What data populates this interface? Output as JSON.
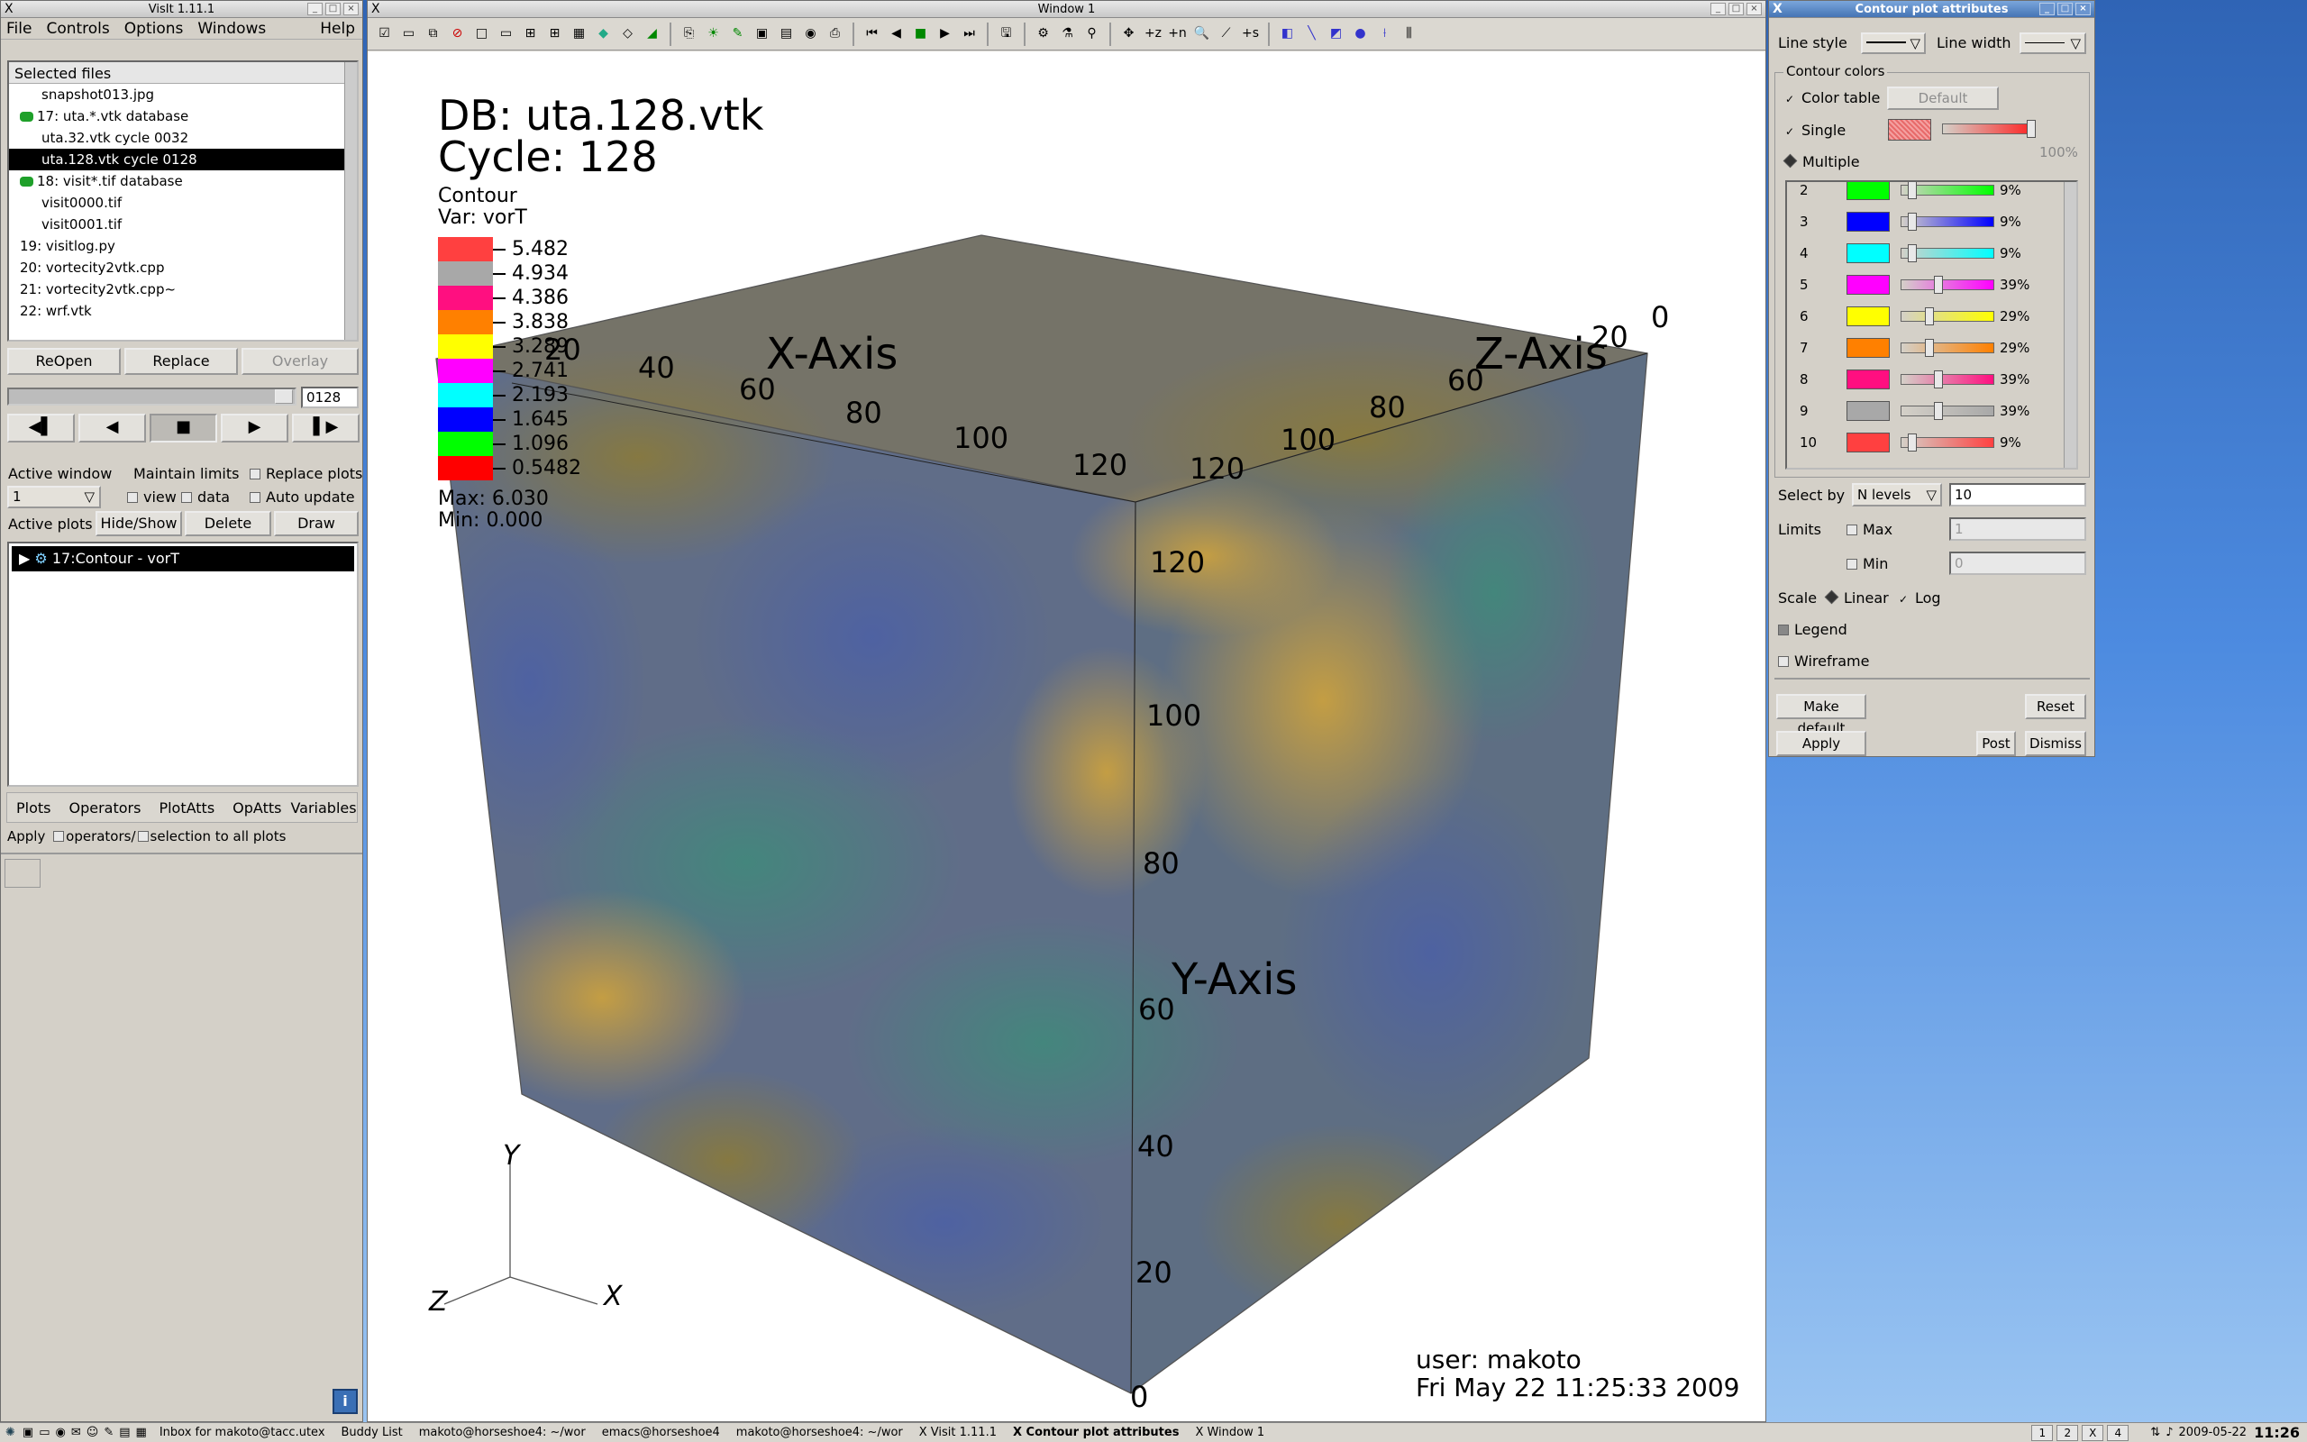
{
  "visit_main": {
    "title": "VisIt 1.11.1",
    "menu": [
      "File",
      "Controls",
      "Options",
      "Windows",
      "Help"
    ],
    "files_header": "Selected files",
    "files": [
      {
        "label": "snapshot013.jpg",
        "indent": 2,
        "icon": "none",
        "selected": false
      },
      {
        "label": "17: uta.*.vtk database",
        "indent": 1,
        "icon": "database-icon",
        "selected": false
      },
      {
        "label": "uta.32.vtk cycle 0032",
        "indent": 2,
        "icon": "none",
        "selected": false
      },
      {
        "label": "uta.128.vtk cycle 0128",
        "indent": 2,
        "icon": "none",
        "selected": true
      },
      {
        "label": "18: visit*.tif database",
        "indent": 1,
        "icon": "database-icon",
        "selected": false
      },
      {
        "label": "visit0000.tif",
        "indent": 2,
        "icon": "none",
        "selected": false
      },
      {
        "label": "visit0001.tif",
        "indent": 2,
        "icon": "none",
        "selected": false
      },
      {
        "label": "19: visitlog.py",
        "indent": 1,
        "icon": "none",
        "selected": false
      },
      {
        "label": "20: vortecity2vtk.cpp",
        "indent": 1,
        "icon": "none",
        "selected": false
      },
      {
        "label": "21: vortecity2vtk.cpp~",
        "indent": 1,
        "icon": "none",
        "selected": false
      },
      {
        "label": "22: wrf.vtk",
        "indent": 1,
        "icon": "none",
        "selected": false
      }
    ],
    "buttons": {
      "reopen": "ReOpen",
      "replace": "Replace",
      "overlay": "Overlay"
    },
    "time_field": "0128",
    "vcr_icons": [
      "step-back-icon",
      "play-reverse-icon",
      "stop-icon",
      "play-icon",
      "step-forward-icon"
    ],
    "vcr_glyphs": [
      "◀▌",
      "◀",
      "■",
      "▶",
      "▌▶"
    ],
    "active_window_label": "Active window",
    "active_window_value": "1",
    "maintain_limits_label": "Maintain limits",
    "view_label": "view",
    "data_label": "data",
    "replace_plots_label": "Replace plots",
    "auto_update_label": "Auto update",
    "active_plots_label": "Active plots",
    "hide_show": "Hide/Show",
    "delete": "Delete",
    "draw": "Draw",
    "plot_entry": "17:Contour - vorT",
    "tabs": [
      "Plots",
      "Operators",
      "PlotAtts",
      "OpAtts"
    ],
    "variables": "Variables",
    "apply_text": "Apply",
    "apply_ops": "operators/",
    "apply_sel": "selection to all plots"
  },
  "viz": {
    "title": "Window 1",
    "db_line": "DB: uta.128.vtk",
    "cycle_line": "Cycle: 128",
    "legend_title": "Contour",
    "legend_var": "Var: vorT",
    "legend_levels": [
      {
        "value": "5.482",
        "color": "#ff4040"
      },
      {
        "value": "4.934",
        "color": "#a8a8a8"
      },
      {
        "value": "4.386",
        "color": "#ff0f80"
      },
      {
        "value": "3.838",
        "color": "#ff8000"
      },
      {
        "value": "3.289",
        "color": "#ffff00"
      },
      {
        "value": "2.741",
        "color": "#ff00ff"
      },
      {
        "value": "2.193",
        "color": "#00ffff"
      },
      {
        "value": "1.645",
        "color": "#0000ff"
      },
      {
        "value": "1.096",
        "color": "#00ff00"
      },
      {
        "value": "0.5482",
        "color": "#ff0000"
      }
    ],
    "max_line": "Max:  6.030",
    "min_line": "Min:  0.000",
    "x_axis_title": "X-Axis",
    "y_axis_title": "Y-Axis",
    "z_axis_title": "Z-Axis",
    "x_ticks": [
      "20",
      "40",
      "60",
      "80",
      "100",
      "120"
    ],
    "y_ticks": [
      "0",
      "20",
      "40",
      "60",
      "80",
      "100",
      "120"
    ],
    "z_ticks": [
      "0",
      "20",
      "60",
      "80",
      "100",
      "120"
    ],
    "triad": {
      "x": "X",
      "y": "Y",
      "z": "Z"
    },
    "user_line": "user: makoto",
    "date_line": "Fri May 22 11:25:33 2009"
  },
  "contour_attrs": {
    "title": "Contour plot attributes",
    "line_style_label": "Line style",
    "line_width_label": "Line width",
    "contour_colors_label": "Contour colors",
    "color_table_label": "Color table",
    "color_table_value": "Default",
    "single_label": "Single",
    "single_pct": "100%",
    "multiple_label": "Multiple",
    "levels": [
      {
        "n": "2",
        "color": "#00ff00",
        "pct": "9%",
        "opacity": 0.09
      },
      {
        "n": "3",
        "color": "#0000ff",
        "pct": "9%",
        "opacity": 0.09
      },
      {
        "n": "4",
        "color": "#00ffff",
        "pct": "9%",
        "opacity": 0.09
      },
      {
        "n": "5",
        "color": "#ff00ff",
        "pct": "39%",
        "opacity": 0.39
      },
      {
        "n": "6",
        "color": "#ffff00",
        "pct": "29%",
        "opacity": 0.29
      },
      {
        "n": "7",
        "color": "#ff8000",
        "pct": "29%",
        "opacity": 0.29
      },
      {
        "n": "8",
        "color": "#ff0f80",
        "pct": "39%",
        "opacity": 0.39
      },
      {
        "n": "9",
        "color": "#a8a8a8",
        "pct": "39%",
        "opacity": 0.39
      },
      {
        "n": "10",
        "color": "#ff4040",
        "pct": "9%",
        "opacity": 0.09
      }
    ],
    "select_by_label": "Select by",
    "select_by_value": "N levels",
    "n_levels": "10",
    "limits_label": "Limits",
    "max_label": "Max",
    "max_value": "1",
    "min_label": "Min",
    "min_value": "0",
    "scale_label": "Scale",
    "linear_label": "Linear",
    "log_label": "Log",
    "legend_label": "Legend",
    "wireframe_label": "Wireframe",
    "make_default": "Make default",
    "reset": "Reset",
    "apply": "Apply",
    "post": "Post",
    "dismiss": "Dismiss"
  },
  "taskbar": {
    "tasks": [
      {
        "label": "Inbox for makoto@tacc.utex",
        "active": false
      },
      {
        "label": "Buddy List",
        "active": false
      },
      {
        "label": "makoto@horseshoe4: ~/wor",
        "active": false
      },
      {
        "label": "emacs@horseshoe4",
        "active": false
      },
      {
        "label": "makoto@horseshoe4: ~/wor",
        "active": false
      },
      {
        "label": "X Visit 1.11.1",
        "active": false
      },
      {
        "label": "X Contour plot attributes",
        "active": true
      },
      {
        "label": "X Window 1",
        "active": false
      }
    ],
    "pagers": [
      "1",
      "2",
      "X",
      "4"
    ],
    "date": "2009-05-22",
    "time": "11:26"
  }
}
